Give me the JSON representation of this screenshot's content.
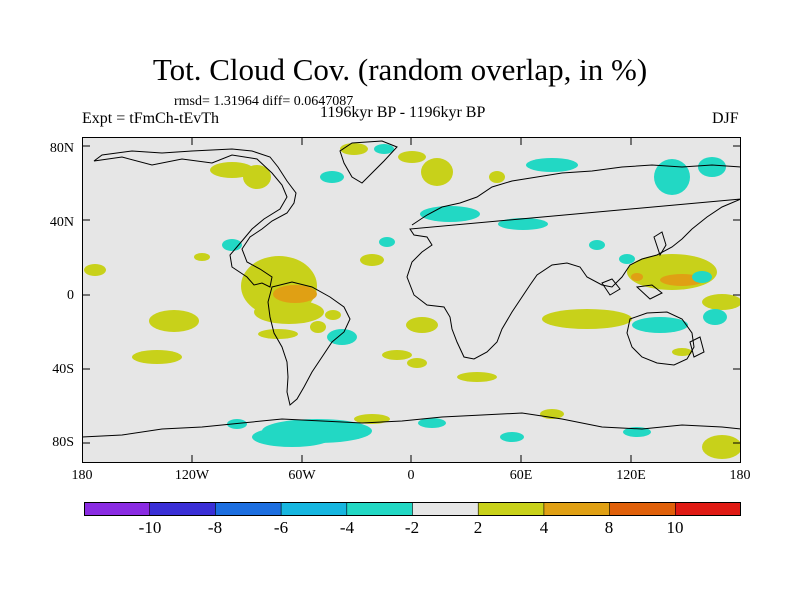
{
  "header": {
    "title": "Tot. Cloud Cov. (random overlap, in %)",
    "stats": "rmsd= 1.31964 diff= 0.0647087",
    "experiment": "Expt = tFmCh-tEvTh",
    "period": "1196kyr BP - 1196kyr BP",
    "season": "DJF"
  },
  "axes": {
    "y_ticks": [
      "80N",
      "40N",
      "0",
      "40S",
      "80S"
    ],
    "x_ticks": [
      "180",
      "120W",
      "60W",
      "0",
      "60E",
      "120E",
      "180"
    ]
  },
  "colorbar": {
    "labels": [
      "-10",
      "-8",
      "-6",
      "-4",
      "-2",
      "2",
      "4",
      "8",
      "10"
    ],
    "colors": [
      "#8a2be2",
      "#3a2fd6",
      "#1c6ee0",
      "#16b6e0",
      "#22d8c4",
      "#e6e6e6",
      "#c8d11a",
      "#e0a014",
      "#e0600a",
      "#e01a14"
    ]
  },
  "map_colors": {
    "background": "#e6e6e6",
    "plus_2_4": "#c8d11a",
    "plus_4_8": "#e0a014",
    "minus_2_4": "#22d8c4",
    "minus_4_6": "#16b6e0"
  }
}
